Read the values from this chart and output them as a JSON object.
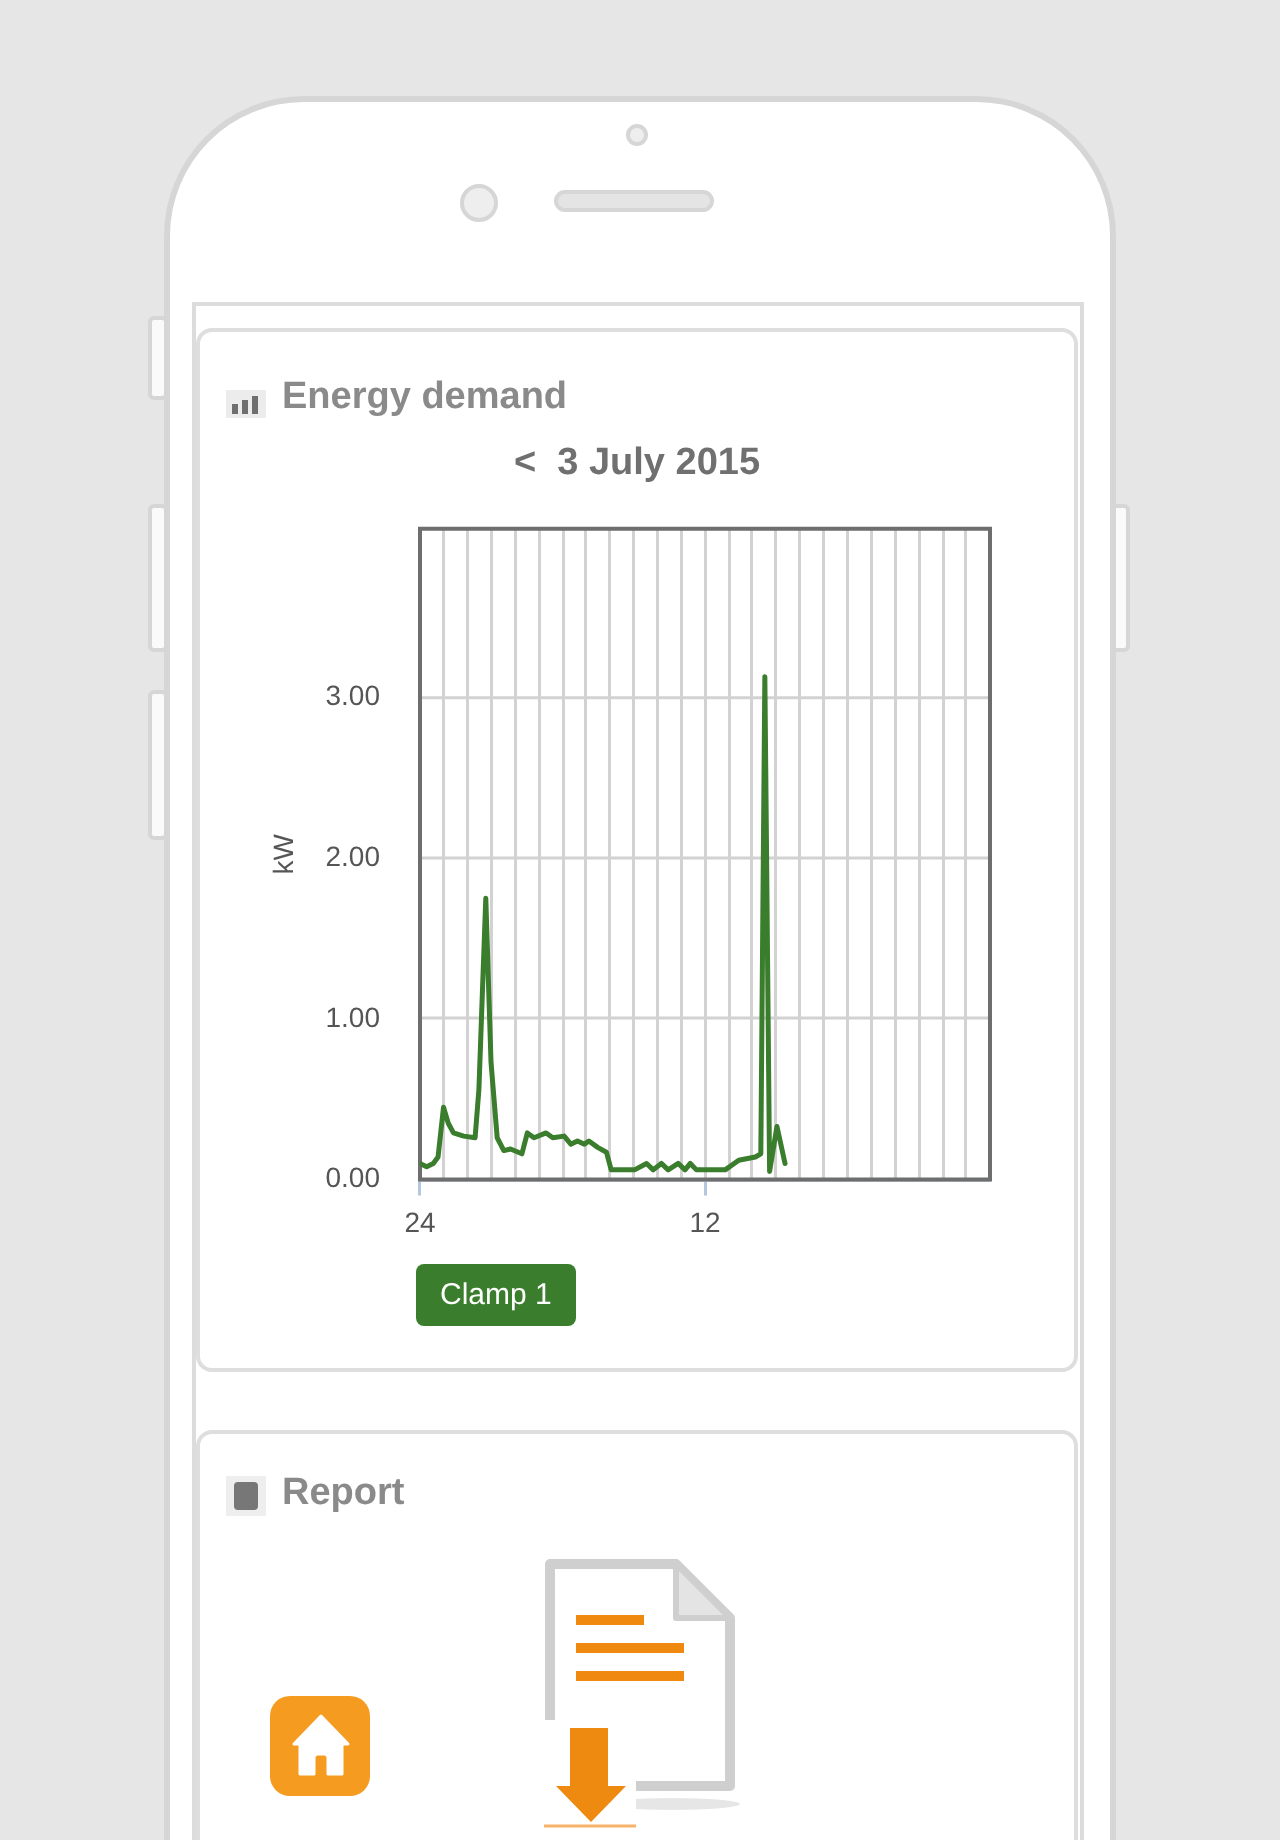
{
  "chart_data": [
    {
      "type": "line",
      "title": "Energy demand",
      "subtitle": "<  3 July 2015",
      "ylabel": "kW",
      "x": [
        24.0,
        23.72,
        23.44,
        23.24,
        23.01,
        22.81,
        22.59,
        22.16,
        21.68,
        21.52,
        21.23,
        21.01,
        20.75,
        20.47,
        20.19,
        19.71,
        19.48,
        19.2,
        18.69,
        18.41,
        17.93,
        17.65,
        17.37,
        17.08,
        16.89,
        16.52,
        16.15,
        15.95,
        15.53,
        14.97,
        14.46,
        14.18,
        13.84,
        13.55,
        13.13,
        12.84,
        12.62,
        12.36,
        11.86,
        11.15,
        10.58,
        9.88,
        9.65,
        9.48,
        9.28,
        8.97,
        8.63
      ],
      "series": [
        {
          "name": "Clamp 1",
          "color": "#3a7d2c",
          "values": [
            0.1,
            0.08,
            0.1,
            0.14,
            0.45,
            0.35,
            0.29,
            0.27,
            0.26,
            0.56,
            1.75,
            0.73,
            0.26,
            0.18,
            0.19,
            0.16,
            0.29,
            0.26,
            0.29,
            0.26,
            0.27,
            0.22,
            0.24,
            0.22,
            0.24,
            0.2,
            0.17,
            0.06,
            0.06,
            0.06,
            0.1,
            0.06,
            0.1,
            0.06,
            0.1,
            0.06,
            0.1,
            0.06,
            0.06,
            0.06,
            0.12,
            0.14,
            0.16,
            3.13,
            0.05,
            0.33,
            0.1
          ]
        }
      ],
      "xlim": [
        24,
        0
      ],
      "xticks": [
        24,
        {
          "value": 23,
          "label": null
        },
        {
          "value": 22,
          "label": null
        },
        {
          "value": 21,
          "label": null
        },
        {
          "value": 20,
          "label": null
        },
        {
          "value": 19,
          "label": null
        },
        {
          "value": 18,
          "label": null
        },
        {
          "value": 17,
          "label": null
        },
        {
          "value": 16,
          "label": null
        },
        {
          "value": 15,
          "label": null
        },
        {
          "value": 14,
          "label": null
        },
        {
          "value": 13,
          "label": null
        },
        12,
        {
          "value": 11,
          "label": null
        },
        {
          "value": 10,
          "label": null
        },
        {
          "value": 9,
          "label": null
        },
        {
          "value": 8,
          "label": null
        },
        {
          "value": 7,
          "label": null
        },
        {
          "value": 6,
          "label": null
        },
        {
          "value": 5,
          "label": null
        },
        {
          "value": 4,
          "label": null
        },
        {
          "value": 3,
          "label": null
        },
        {
          "value": 2,
          "label": null
        },
        {
          "value": 1,
          "label": null
        },
        {
          "value": 0,
          "label": null
        }
      ],
      "ylim": [
        0,
        4.05
      ],
      "yticks": [
        {
          "value": 0,
          "label": "0.00"
        },
        {
          "value": 1,
          "label": "1.00"
        },
        {
          "value": 2,
          "label": "2.00"
        },
        {
          "value": 3,
          "label": "3.00"
        }
      ],
      "grid": true,
      "legend": "bottom left"
    },
    {
      "type": "other",
      "title": "Report"
    }
  ]
}
